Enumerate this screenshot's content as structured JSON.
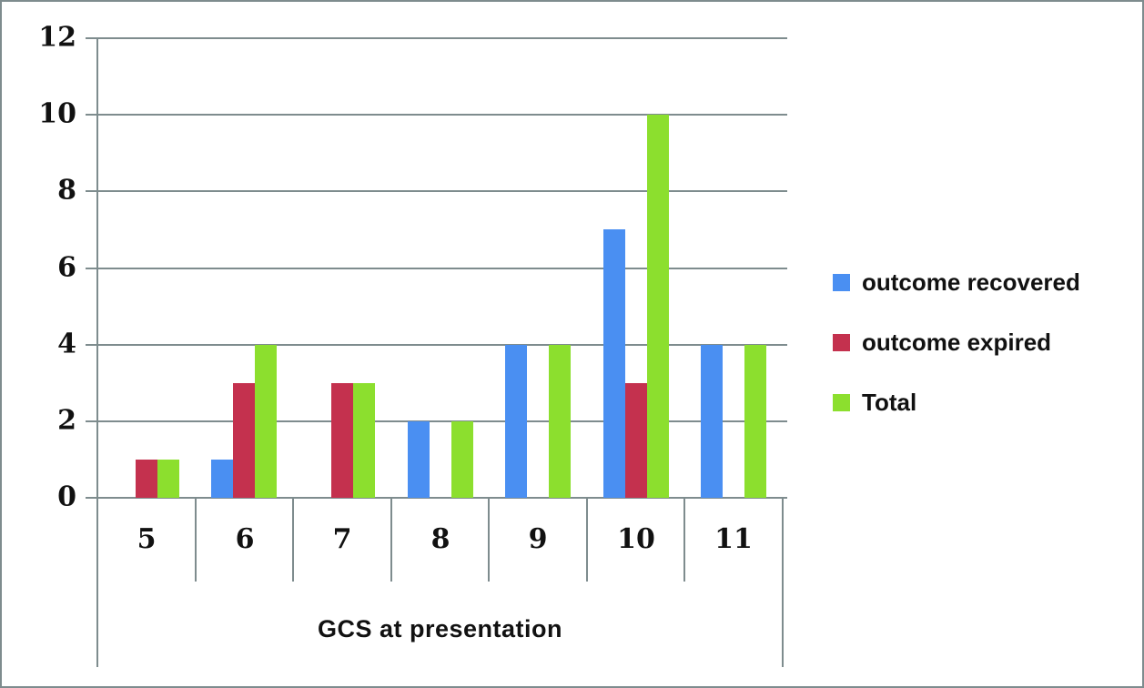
{
  "chart_data": {
    "type": "bar",
    "title": "",
    "xlabel": "GCS at presentation",
    "ylabel": "",
    "categories": [
      "5",
      "6",
      "7",
      "8",
      "9",
      "10",
      "11"
    ],
    "series": [
      {
        "name": "outcome recovered",
        "color": "#4a8ff2",
        "values": [
          0,
          1,
          0,
          2,
          4,
          7,
          4
        ]
      },
      {
        "name": "outcome expired",
        "color": "#c4314e",
        "values": [
          1,
          3,
          3,
          0,
          0,
          3,
          0
        ]
      },
      {
        "name": "Total",
        "color": "#8cdf2e",
        "values": [
          1,
          4,
          3,
          2,
          4,
          10,
          4
        ]
      }
    ],
    "ylim": [
      0,
      12
    ],
    "yticks": [
      0,
      2,
      4,
      6,
      8,
      10,
      12
    ],
    "grid": "horizontal-only",
    "legend_position": "right-middle"
  },
  "colors": {
    "grid": "#7e8c8e",
    "frame_border": "#7e8c8e",
    "text": "#111111",
    "background": "#ffffff"
  }
}
